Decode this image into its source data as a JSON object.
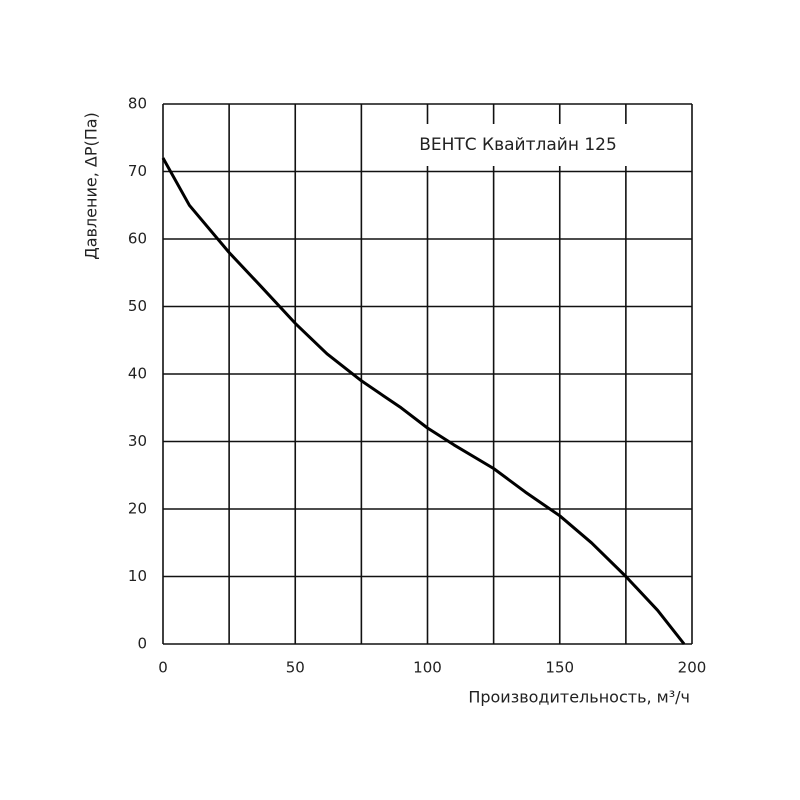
{
  "chart_data": {
    "type": "line",
    "annotation": "ВЕНТС Квайтлайн 125",
    "x_label": "Производительность, м³/ч",
    "y_label": "Давление, ΔP(Па)",
    "x": [
      0,
      10,
      25,
      37,
      50,
      62,
      75,
      90,
      100,
      110,
      125,
      137,
      150,
      162,
      175,
      187,
      197
    ],
    "values": [
      72,
      65,
      58,
      53,
      47.5,
      43,
      39,
      35,
      32,
      29.5,
      26,
      22.5,
      19,
      15,
      10,
      5,
      0
    ],
    "color": "#000000",
    "xlim": [
      0,
      200
    ],
    "xticks": [
      0,
      50,
      100,
      150,
      200
    ],
    "x_minor_grid": [
      25,
      75,
      125,
      175
    ],
    "ylim": [
      0,
      80
    ],
    "yticks": [
      0,
      10,
      20,
      30,
      40,
      50,
      60,
      70,
      80
    ],
    "grid": true
  }
}
